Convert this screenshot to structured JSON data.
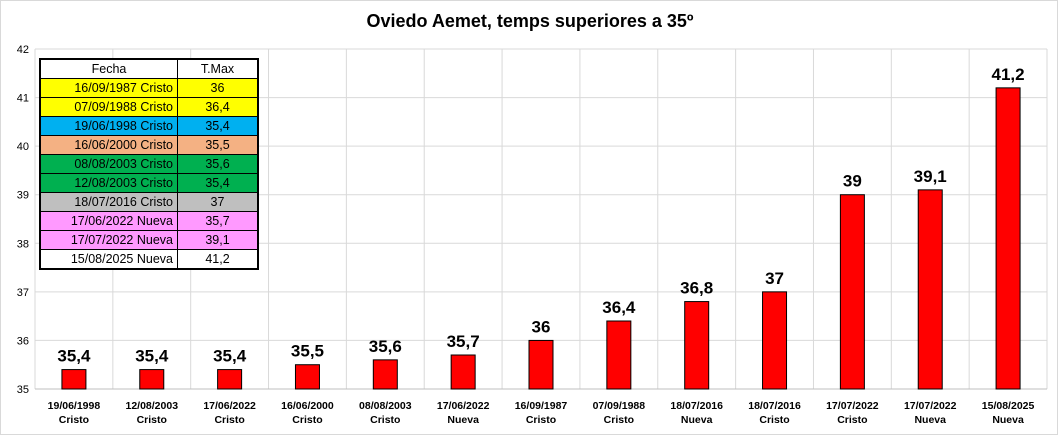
{
  "chart_data": {
    "type": "bar",
    "title": "Oviedo Aemet, temps superiores a 35º",
    "categories": [
      [
        "19/06/1998",
        "Cristo"
      ],
      [
        "12/08/2003",
        "Cristo"
      ],
      [
        "17/06/2022",
        "Cristo"
      ],
      [
        "16/06/2000",
        "Cristo"
      ],
      [
        "08/08/2003",
        "Cristo"
      ],
      [
        "17/06/2022",
        "Nueva"
      ],
      [
        "16/09/1987",
        "Cristo"
      ],
      [
        "07/09/1988",
        "Cristo"
      ],
      [
        "18/07/2016",
        "Nueva"
      ],
      [
        "18/07/2016",
        "Cristo"
      ],
      [
        "17/07/2022",
        "Cristo"
      ],
      [
        "17/07/2022",
        "Nueva"
      ],
      [
        "15/08/2025",
        "Nueva"
      ]
    ],
    "values": [
      35.4,
      35.4,
      35.4,
      35.5,
      35.6,
      35.7,
      36,
      36.4,
      36.8,
      37,
      39,
      39.1,
      41.2
    ],
    "data_labels": [
      "35,4",
      "35,4",
      "35,4",
      "35,5",
      "35,6",
      "35,7",
      "36",
      "36,4",
      "36,8",
      "37",
      "39",
      "39,1",
      "41,2"
    ],
    "ylim": [
      35,
      42
    ],
    "yticks": [
      35,
      36,
      37,
      38,
      39,
      40,
      41,
      42
    ],
    "grid": true,
    "bar_color": "#ff0000",
    "bar_edge_color": "#000000"
  },
  "legend_table": {
    "headers": [
      "Fecha",
      "T.Max"
    ],
    "rows": [
      {
        "fecha": "16/09/1987 Cristo",
        "tmax": "36",
        "color": "#ffff00"
      },
      {
        "fecha": "07/09/1988 Cristo",
        "tmax": "36,4",
        "color": "#ffff00"
      },
      {
        "fecha": "19/06/1998 Cristo",
        "tmax": "35,4",
        "color": "#00b0f0"
      },
      {
        "fecha": "16/06/2000 Cristo",
        "tmax": "35,5",
        "color": "#f4b183"
      },
      {
        "fecha": "08/08/2003 Cristo",
        "tmax": "35,6",
        "color": "#00b050"
      },
      {
        "fecha": "12/08/2003 Cristo",
        "tmax": "35,4",
        "color": "#00b050"
      },
      {
        "fecha": "18/07/2016 Cristo",
        "tmax": "37",
        "color": "#bfbfbf"
      },
      {
        "fecha": "17/06/2022 Nueva",
        "tmax": "35,7",
        "color": "#ff99ff"
      },
      {
        "fecha": "17/07/2022 Nueva",
        "tmax": "39,1",
        "color": "#ff99ff"
      },
      {
        "fecha": "15/08/2025 Nueva",
        "tmax": "41,2",
        "color": "#ffffff"
      }
    ]
  }
}
